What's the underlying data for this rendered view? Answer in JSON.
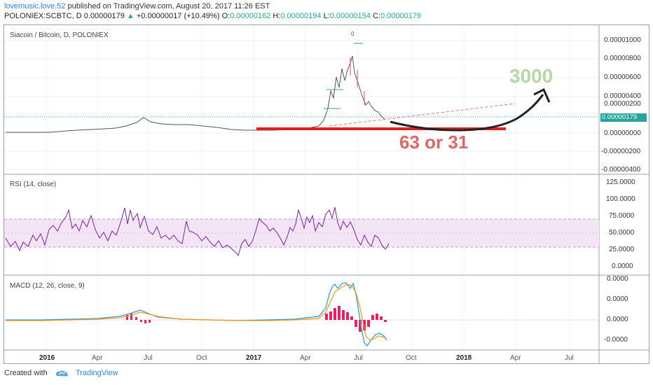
{
  "header": {
    "author": "lovemusic.love.52",
    "published_text": "published on TradingView.com, August 20, 2017 11:26 EST",
    "symbol_line": "POLONIEX:SCBTC, D",
    "last_price": "0.00000179",
    "change": "+0.00000017 (+10.49%)",
    "open_label": "O:",
    "open": "0.00000162",
    "high_label": "H:",
    "high": "0.00000194",
    "low_label": "L:",
    "low": "0.00000154",
    "close_label": "C:",
    "close": "0.00000179"
  },
  "price_pane": {
    "title": "Siacoin / Bitcoin, D, POLONIEX",
    "axis_ticks": [
      "0.00001000",
      "0.00000800",
      "0.00000600",
      "0.00000400",
      "0.00000200",
      "0.00000000",
      "-0.00000200",
      "-0.00000400"
    ],
    "current_price_tag": "0.00000179",
    "marker_label": "0"
  },
  "rsi_pane": {
    "title": "RSI (14, close)",
    "axis_ticks": [
      "125.0000",
      "100.0000",
      "75.0000",
      "50.0000",
      "25.0000",
      "0.0000"
    ]
  },
  "macd_pane": {
    "title": "MACD (12, 26, close, 9)",
    "axis_ticks": [
      "0.0000",
      "0.0000",
      "0.0000",
      "-0.0000"
    ]
  },
  "x_axis": {
    "labels": [
      {
        "text": "2016",
        "bold": true
      },
      {
        "text": "Apr",
        "bold": false
      },
      {
        "text": "Jul",
        "bold": false
      },
      {
        "text": "Oct",
        "bold": false
      },
      {
        "text": "2017",
        "bold": true
      },
      {
        "text": "Apr",
        "bold": false
      },
      {
        "text": "Jul",
        "bold": false
      },
      {
        "text": "Oct",
        "bold": false
      },
      {
        "text": "2018",
        "bold": true
      },
      {
        "text": "Apr",
        "bold": false
      },
      {
        "text": "Jul",
        "bold": false
      }
    ]
  },
  "annotations": {
    "target": "3000",
    "support_text": "63 or 31"
  },
  "footer": {
    "created_with": "Created with",
    "brand": "TradingView"
  },
  "colors": {
    "up": "#26a69a",
    "down": "#ef5350",
    "rsi_line": "#7b1fa2",
    "rsi_band": "#f3e5f5",
    "macd_line": "#2196f3",
    "signal_line": "#ff9800",
    "histogram": "#e91e63",
    "support_line": "#e02020",
    "target_text": "#b7d7a8"
  }
}
